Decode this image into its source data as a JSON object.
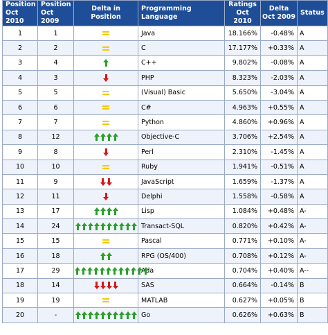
{
  "headers": {
    "pos2010": "Position Oct 2010",
    "pos2009": "Position Oct 2009",
    "delta_pos": "Delta in Position",
    "language": "Programming Language",
    "ratings": "Ratings Oct 2010",
    "delta2009": "Delta Oct 2009",
    "status": "Status"
  },
  "glyphs": {
    "equal": "equal-sign-icon",
    "up": "green-up-arrow-icon",
    "down": "red-down-arrow-icon"
  },
  "colors": {
    "header_bg": "#1f4e99",
    "up": "#2aa02a",
    "down": "#d81818",
    "equal": "#f7c800"
  },
  "rows": [
    {
      "pos2010": "1",
      "pos2009": "1",
      "delta": {
        "dir": "equal",
        "count": 1
      },
      "language": "Java",
      "ratings": "18.166%",
      "delta2009": "-0.48%",
      "status": "A"
    },
    {
      "pos2010": "2",
      "pos2009": "2",
      "delta": {
        "dir": "equal",
        "count": 1
      },
      "language": "C",
      "ratings": "17.177%",
      "delta2009": "+0.33%",
      "status": "A"
    },
    {
      "pos2010": "3",
      "pos2009": "4",
      "delta": {
        "dir": "up",
        "count": 1
      },
      "language": "C++",
      "ratings": "9.802%",
      "delta2009": "-0.08%",
      "status": "A"
    },
    {
      "pos2010": "4",
      "pos2009": "3",
      "delta": {
        "dir": "down",
        "count": 1
      },
      "language": "PHP",
      "ratings": "8.323%",
      "delta2009": "-2.03%",
      "status": "A"
    },
    {
      "pos2010": "5",
      "pos2009": "5",
      "delta": {
        "dir": "equal",
        "count": 1
      },
      "language": "(Visual) Basic",
      "ratings": "5.650%",
      "delta2009": "-3.04%",
      "status": "A"
    },
    {
      "pos2010": "6",
      "pos2009": "6",
      "delta": {
        "dir": "equal",
        "count": 1
      },
      "language": "C#",
      "ratings": "4.963%",
      "delta2009": "+0.55%",
      "status": "A"
    },
    {
      "pos2010": "7",
      "pos2009": "7",
      "delta": {
        "dir": "equal",
        "count": 1
      },
      "language": "Python",
      "ratings": "4.860%",
      "delta2009": "+0.96%",
      "status": "A"
    },
    {
      "pos2010": "8",
      "pos2009": "12",
      "delta": {
        "dir": "up",
        "count": 4
      },
      "language": "Objective-C",
      "ratings": "3.706%",
      "delta2009": "+2.54%",
      "status": "A"
    },
    {
      "pos2010": "9",
      "pos2009": "8",
      "delta": {
        "dir": "down",
        "count": 1
      },
      "language": "Perl",
      "ratings": "2.310%",
      "delta2009": "-1.45%",
      "status": "A"
    },
    {
      "pos2010": "10",
      "pos2009": "10",
      "delta": {
        "dir": "equal",
        "count": 1
      },
      "language": "Ruby",
      "ratings": "1.941%",
      "delta2009": "-0.51%",
      "status": "A"
    },
    {
      "pos2010": "11",
      "pos2009": "9",
      "delta": {
        "dir": "down",
        "count": 2
      },
      "language": "JavaScript",
      "ratings": "1.659%",
      "delta2009": "-1.37%",
      "status": "A"
    },
    {
      "pos2010": "12",
      "pos2009": "11",
      "delta": {
        "dir": "down",
        "count": 1
      },
      "language": "Delphi",
      "ratings": "1.558%",
      "delta2009": "-0.58%",
      "status": "A"
    },
    {
      "pos2010": "13",
      "pos2009": "17",
      "delta": {
        "dir": "up",
        "count": 4
      },
      "language": "Lisp",
      "ratings": "1.084%",
      "delta2009": "+0.48%",
      "status": "A-"
    },
    {
      "pos2010": "14",
      "pos2009": "24",
      "delta": {
        "dir": "up",
        "count": 10
      },
      "language": "Transact-SQL",
      "ratings": "0.820%",
      "delta2009": "+0.42%",
      "status": "A-"
    },
    {
      "pos2010": "15",
      "pos2009": "15",
      "delta": {
        "dir": "equal",
        "count": 1
      },
      "language": "Pascal",
      "ratings": "0.771%",
      "delta2009": "+0.10%",
      "status": "A-"
    },
    {
      "pos2010": "16",
      "pos2009": "18",
      "delta": {
        "dir": "up",
        "count": 2
      },
      "language": "RPG (OS/400)",
      "ratings": "0.708%",
      "delta2009": "+0.12%",
      "status": "A-"
    },
    {
      "pos2010": "17",
      "pos2009": "29",
      "delta": {
        "dir": "up",
        "count": 12
      },
      "language": "Ada",
      "ratings": "0.704%",
      "delta2009": "+0.40%",
      "status": "A--"
    },
    {
      "pos2010": "18",
      "pos2009": "14",
      "delta": {
        "dir": "down",
        "count": 4
      },
      "language": "SAS",
      "ratings": "0.664%",
      "delta2009": "-0.14%",
      "status": "B"
    },
    {
      "pos2010": "19",
      "pos2009": "19",
      "delta": {
        "dir": "equal",
        "count": 1
      },
      "language": "MATLAB",
      "ratings": "0.627%",
      "delta2009": "+0.05%",
      "status": "B"
    },
    {
      "pos2010": "20",
      "pos2009": "-",
      "delta": {
        "dir": "up",
        "count": 10
      },
      "language": "Go",
      "ratings": "0.626%",
      "delta2009": "+0.63%",
      "status": "B"
    }
  ]
}
